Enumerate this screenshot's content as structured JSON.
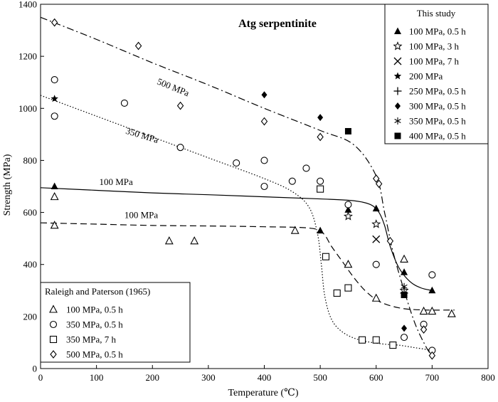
{
  "chart_data": {
    "type": "scatter",
    "title": "Atg serpentinite",
    "xlabel": "Temperature (℃)",
    "ylabel": "Strength (MPa)",
    "xlim": [
      0,
      800
    ],
    "ylim": [
      0,
      1400
    ],
    "xticks": [
      0,
      100,
      200,
      300,
      400,
      500,
      600,
      700,
      800
    ],
    "yticks": [
      0,
      200,
      400,
      600,
      800,
      1000,
      1200,
      1400
    ],
    "grid": false,
    "legends": [
      {
        "title": "This study",
        "placement": "top-right",
        "entries": [
          {
            "label": "100 MPa, 0.5 h",
            "marker": "triangle-filled"
          },
          {
            "label": "100 MPa, 3 h",
            "marker": "star-open"
          },
          {
            "label": "100 MPa, 7 h",
            "marker": "cross"
          },
          {
            "label": "200 MPa",
            "marker": "star-filled"
          },
          {
            "label": "250 MPa, 0.5 h",
            "marker": "plus"
          },
          {
            "label": "300 MPa, 0.5 h",
            "marker": "diamond-filled"
          },
          {
            "label": "350 MPa, 0.5 h",
            "marker": "asterisk"
          },
          {
            "label": "400 MPa, 0.5 h",
            "marker": "square-filled"
          }
        ]
      },
      {
        "title": "Raleigh and Paterson (1965)",
        "placement": "bottom-left",
        "entries": [
          {
            "label": "100 MPa, 0.5 h",
            "marker": "triangle-open"
          },
          {
            "label": "350 MPa, 0.5 h",
            "marker": "circle-open"
          },
          {
            "label": "350 MPa, 7 h",
            "marker": "square-open"
          },
          {
            "label": "500 MPa, 0.5 h",
            "marker": "diamond-open"
          }
        ]
      }
    ],
    "series": [
      {
        "name": "100 MPa, 0.5 h (this study)",
        "marker": "triangle-filled",
        "x": [
          25,
          500,
          550,
          600,
          650,
          700
        ],
        "y": [
          700,
          530,
          610,
          615,
          370,
          300
        ]
      },
      {
        "name": "100 MPa, 3 h",
        "marker": "star-open",
        "x": [
          550,
          600,
          650
        ],
        "y": [
          585,
          555,
          300
        ]
      },
      {
        "name": "100 MPa, 7 h",
        "marker": "cross",
        "x": [
          600
        ],
        "y": [
          497
        ]
      },
      {
        "name": "200 MPa",
        "marker": "star-filled",
        "x": [
          25
        ],
        "y": [
          1037
        ]
      },
      {
        "name": "250 MPa, 0.5 h",
        "marker": "plus",
        "x": [
          650
        ],
        "y": [
          290
        ]
      },
      {
        "name": "300 MPa, 0.5 h",
        "marker": "diamond-filled",
        "x": [
          400,
          500,
          650
        ],
        "y": [
          1052,
          965,
          155
        ]
      },
      {
        "name": "350 MPa, 0.5 h (this study)",
        "marker": "asterisk",
        "x": [
          650
        ],
        "y": [
          315
        ]
      },
      {
        "name": "400 MPa, 0.5 h",
        "marker": "square-filled",
        "x": [
          550,
          650
        ],
        "y": [
          912,
          283
        ]
      },
      {
        "name": "100 MPa, 0.5 h (Raleigh and Paterson)",
        "marker": "triangle-open",
        "x": [
          25,
          25,
          230,
          275,
          455,
          550,
          600,
          650,
          685,
          700,
          735
        ],
        "y": [
          660,
          550,
          490,
          490,
          530,
          400,
          270,
          420,
          220,
          220,
          210
        ]
      },
      {
        "name": "350 MPa, 0.5 h",
        "marker": "circle-open",
        "x": [
          25,
          25,
          150,
          250,
          350,
          400,
          400,
          450,
          475,
          500,
          550,
          600,
          650,
          685,
          700,
          700
        ],
        "y": [
          1110,
          970,
          1020,
          850,
          790,
          800,
          700,
          720,
          770,
          720,
          630,
          400,
          120,
          170,
          360,
          70
        ]
      },
      {
        "name": "350 MPa, 7 h",
        "marker": "square-open",
        "x": [
          500,
          510,
          530,
          550,
          575,
          600,
          630
        ],
        "y": [
          690,
          430,
          290,
          310,
          110,
          110,
          90
        ]
      },
      {
        "name": "500 MPa, 0.5 h",
        "marker": "diamond-open",
        "x": [
          25,
          175,
          250,
          400,
          500,
          600,
          605,
          625,
          685,
          700
        ],
        "y": [
          1330,
          1240,
          1010,
          950,
          890,
          730,
          710,
          490,
          150,
          50
        ]
      }
    ],
    "curves": [
      {
        "label": "500 MPa",
        "style": "dash-dot",
        "x": [
          0,
          100,
          200,
          300,
          400,
          500,
          560,
          600,
          615,
          630,
          650,
          670,
          690,
          700
        ],
        "y": [
          1350,
          1265,
          1175,
          1090,
          1000,
          915,
          860,
          740,
          600,
          450,
          300,
          170,
          80,
          50
        ]
      },
      {
        "label": "350 MPa",
        "style": "dotted",
        "x": [
          0,
          100,
          200,
          300,
          400,
          450,
          480,
          495,
          502,
          508,
          520,
          540,
          570,
          610,
          640,
          670,
          700
        ],
        "y": [
          1050,
          970,
          890,
          810,
          730,
          680,
          620,
          520,
          400,
          280,
          190,
          140,
          110,
          95,
          90,
          80,
          70
        ]
      },
      {
        "label": "100 MPa",
        "style": "solid",
        "x": [
          0,
          100,
          200,
          300,
          400,
          500,
          560,
          590,
          605,
          615,
          625,
          640,
          660,
          680,
          700
        ],
        "y": [
          695,
          685,
          675,
          668,
          660,
          652,
          645,
          630,
          600,
          550,
          470,
          390,
          335,
          310,
          300
        ]
      },
      {
        "label": "100 MPa",
        "style": "dashed",
        "x": [
          0,
          100,
          200,
          300,
          400,
          480,
          505,
          520,
          540,
          560,
          580,
          600,
          620,
          650,
          690,
          740
        ],
        "y": [
          560,
          555,
          550,
          548,
          545,
          540,
          520,
          470,
          410,
          350,
          300,
          265,
          245,
          230,
          225,
          225
        ]
      }
    ],
    "curve_labels": [
      {
        "text": "500 MPa",
        "x": 235,
        "y": 1070,
        "angle": 22
      },
      {
        "text": "350 MPa",
        "x": 180,
        "y": 885,
        "angle": 17
      },
      {
        "text": "100 MPa",
        "x": 135,
        "y": 705,
        "angle": 0
      },
      {
        "text": "100 MPa",
        "x": 180,
        "y": 578,
        "angle": 0
      }
    ]
  }
}
